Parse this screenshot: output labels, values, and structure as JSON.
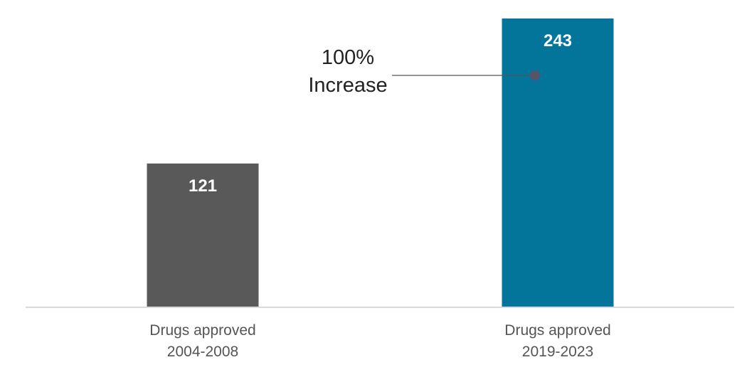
{
  "chart_data": {
    "type": "bar",
    "categories": [
      [
        "Drugs approved",
        "2004-2008"
      ],
      [
        "Drugs approved",
        "2019-2023"
      ]
    ],
    "values": [
      121,
      243
    ],
    "data_labels": [
      "121",
      "243"
    ],
    "ylim": [
      0,
      243
    ],
    "grid": false,
    "legend": "none",
    "colors": [
      "#595959",
      "#03759b"
    ],
    "annotation": {
      "lines": [
        "100%",
        "Increase"
      ],
      "points_to": "243"
    }
  }
}
